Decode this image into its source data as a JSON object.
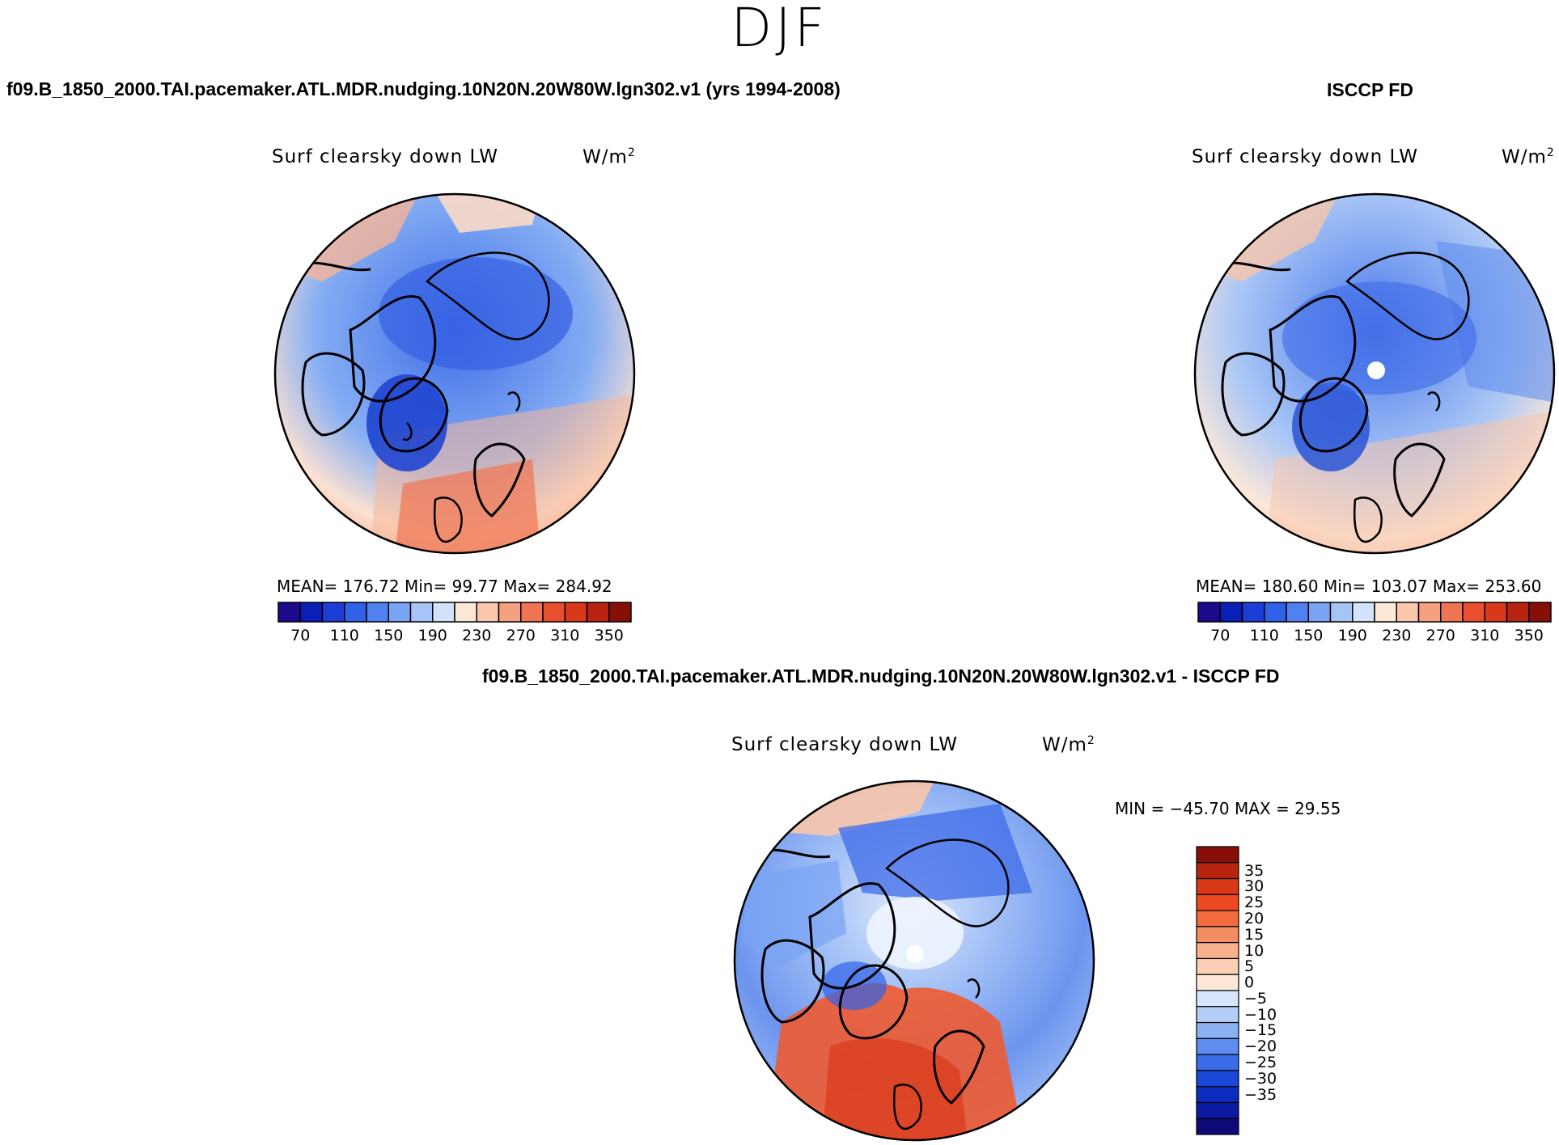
{
  "title": "DJF",
  "panels": [
    {
      "id": "model",
      "case_title": "f09.B_1850_2000.TAI.pacemaker.ATL.MDR.nudging.10N20N.20W80W.lgn302.v1 (yrs 1994-2008)",
      "variable": "Surf clearsky down LW",
      "units_base": "W/m",
      "units_exp": "2",
      "stats": "MEAN= 176.72   Min=   99.77   Max= 284.92"
    },
    {
      "id": "obs",
      "case_title": "ISCCP FD",
      "variable": "Surf clearsky down LW",
      "units_base": "W/m",
      "units_exp": "2",
      "stats": "MEAN= 180.60   Min= 103.07   Max= 253.60"
    },
    {
      "id": "diff",
      "case_title": "f09.B_1850_2000.TAI.pacemaker.ATL.MDR.nudging.10N20N.20W80W.lgn302.v1 - ISCCP FD",
      "variable": "Surf clearsky down LW",
      "units_base": "W/m",
      "units_exp": "2",
      "stats": "MIN = −45.70  MAX =   29.55"
    }
  ],
  "colorbar_abs": {
    "labels": [
      "70",
      "110",
      "150",
      "190",
      "230",
      "270",
      "310",
      "350"
    ],
    "colors": [
      "#1a0a8c",
      "#0a1fb8",
      "#1b3fd6",
      "#2f62e8",
      "#4f82f0",
      "#79a4f3",
      "#a6c4f6",
      "#d2e2fa",
      "#fde8d8",
      "#fac7ad",
      "#f5a07e",
      "#ef7552",
      "#e94f2d",
      "#d93918",
      "#b82410",
      "#861008"
    ]
  },
  "colorbar_diff": {
    "labels": [
      "35",
      "30",
      "25",
      "20",
      "15",
      "10",
      "5",
      "0",
      "−5",
      "−10",
      "−15",
      "−20",
      "−25",
      "−30",
      "−35"
    ],
    "colors": [
      "#861008",
      "#b82410",
      "#d93918",
      "#ee4a22",
      "#f16b3e",
      "#f58d62",
      "#f8b08c",
      "#fbcfb5",
      "#fde8d8",
      "#d7e6fb",
      "#b3cdf6",
      "#8cb1f1",
      "#5f8ced",
      "#3a6be8",
      "#1b48d8",
      "#0a2dbf",
      "#0b1aa0",
      "#0d0a78"
    ]
  },
  "map_colors": {
    "model": {
      "north": "#3e6de8",
      "mid": "#86aef3",
      "south": "#f49c7a",
      "greenland": "#1f45d0",
      "coast": "#000000"
    },
    "obs": {
      "north": "#4a78ea",
      "mid": "#a9c6f6",
      "south": "#f6b498",
      "greenland": "#2a55d6",
      "coast": "#000000"
    },
    "diff": {
      "north": "#3d6be8",
      "mid": "#a2c0f6",
      "south": "#e8542c",
      "center": "#dde9fc",
      "coast": "#000000"
    }
  }
}
